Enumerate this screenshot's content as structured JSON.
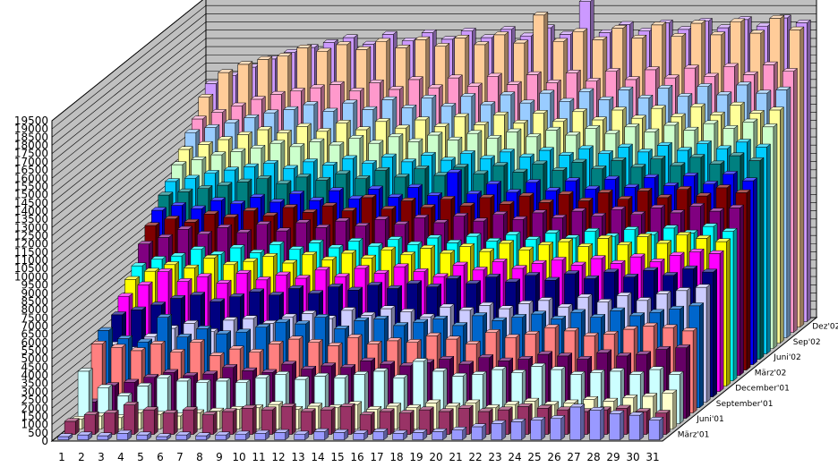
{
  "chart_data": {
    "type": "bar",
    "subtype": "3d-column",
    "title": "",
    "xlabel": "",
    "ylabel": "",
    "ylim": [
      0,
      19500
    ],
    "y_ticks": [
      "0",
      "500",
      "1000",
      "1500",
      "2000",
      "2500",
      "3000",
      "3500",
      "4000",
      "4500",
      "5000",
      "5500",
      "6000",
      "6500",
      "7000",
      "7500",
      "8000",
      "8500",
      "9000",
      "9500",
      "10000",
      "10500",
      "11000",
      "11500",
      "12000",
      "12500",
      "13000",
      "13500",
      "14000",
      "14500",
      "15000",
      "15500",
      "16000",
      "16500",
      "17000",
      "17500",
      "18000",
      "18500",
      "19000",
      "19500"
    ],
    "categories": [
      "1",
      "2",
      "3",
      "4",
      "5",
      "6",
      "7",
      "8",
      "9",
      "10",
      "11",
      "12",
      "13",
      "14",
      "15",
      "16",
      "17",
      "18",
      "19",
      "20",
      "21",
      "22",
      "23",
      "24",
      "25",
      "26",
      "27",
      "28",
      "29",
      "30",
      "31"
    ],
    "depth_labels": [
      "März'01",
      "Juni'01",
      "September'01",
      "December'01",
      "März'02",
      "Juni'02",
      "Sep'02",
      "Dez'02"
    ],
    "grid": true,
    "legend": "none",
    "series": [
      {
        "color": "#9999ff",
        "values": [
          200,
          300,
          250,
          400,
          300,
          200,
          300,
          250,
          300,
          350,
          400,
          450,
          350,
          500,
          450,
          400,
          500,
          400,
          450,
          500,
          600,
          800,
          1000,
          1100,
          1200,
          1300,
          2000,
          1800,
          1600,
          1500,
          1200
        ]
      },
      {
        "color": "#993366",
        "values": [
          800,
          1200,
          1300,
          1800,
          1500,
          1300,
          1500,
          1200,
          1400,
          1600,
          1500,
          1700,
          1400,
          1500,
          1700,
          1200,
          1400,
          1300,
          1500,
          1400,
          1600,
          1400,
          1500,
          1700,
          1600,
          1500,
          1400,
          1500,
          1600,
          1400,
          1300
        ]
      },
      {
        "color": "#ffffcc",
        "values": [
          600,
          800,
          700,
          1000,
          900,
          800,
          1000,
          1100,
          1200,
          1300,
          1500,
          1200,
          1400,
          1300,
          1500,
          1200,
          1400,
          1300,
          1600,
          1400,
          1600,
          1300,
          1500,
          1700,
          1500,
          1600,
          1800,
          1700,
          1900,
          2000,
          2200
        ]
      },
      {
        "color": "#ccffff",
        "values": [
          3200,
          2200,
          1700,
          2300,
          2800,
          2600,
          2500,
          2600,
          2500,
          2800,
          3000,
          2700,
          2900,
          2800,
          3000,
          3200,
          2800,
          3800,
          3200,
          2900,
          3000,
          3300,
          3100,
          3500,
          3300,
          3000,
          3100,
          3200,
          3000,
          3300,
          3000
        ]
      },
      {
        "color": "#660066",
        "values": [
          1000,
          2000,
          2200,
          2500,
          2800,
          2600,
          2700,
          3100,
          2900,
          2800,
          3300,
          3000,
          3200,
          3100,
          3500,
          3300,
          3200,
          3400,
          3600,
          3300,
          3700,
          3500,
          3600,
          3900,
          3800,
          3600,
          4000,
          3800,
          3900,
          4200,
          4300
        ]
      },
      {
        "color": "#ff8080",
        "values": [
          4200,
          4000,
          3800,
          4200,
          3700,
          4300,
          3500,
          3900,
          3700,
          4200,
          4500,
          4300,
          4100,
          4600,
          4200,
          4400,
          4300,
          4700,
          4500,
          4200,
          4900,
          4600,
          4800,
          5200,
          5000,
          4700,
          4800,
          5100,
          5300,
          5200,
          5000
        ]
      },
      {
        "color": "#0066cc",
        "values": [
          4700,
          4200,
          4000,
          5500,
          4300,
          4800,
          4500,
          4600,
          4900,
          5200,
          5100,
          5500,
          4800,
          5300,
          5400,
          5000,
          5200,
          5400,
          5000,
          5600,
          5300,
          5500,
          5700,
          5400,
          5800,
          5500,
          5900,
          5600,
          5800,
          6000,
          6200
        ]
      },
      {
        "color": "#ccccff",
        "values": [
          3500,
          3200,
          4000,
          4500,
          4800,
          4300,
          5000,
          5100,
          4800,
          5200,
          5400,
          5100,
          5600,
          5300,
          5700,
          5500,
          5200,
          5800,
          5600,
          5900,
          5700,
          6000,
          6200,
          5800,
          6400,
          6100,
          6500,
          6200,
          6600,
          6800,
          7000
        ]
      },
      {
        "color": "#000080",
        "values": [
          5000,
          5300,
          5600,
          6000,
          6200,
          5800,
          6100,
          6400,
          6200,
          6600,
          6300,
          6700,
          6500,
          6800,
          6600,
          6900,
          6700,
          7200,
          6900,
          7300,
          7000,
          7400,
          7100,
          7500,
          7200,
          7600,
          7300,
          7700,
          7400,
          7800,
          7600
        ]
      },
      {
        "color": "#ff00ff",
        "values": [
          5800,
          6500,
          7300,
          6700,
          7000,
          6600,
          7200,
          6800,
          7100,
          6900,
          7400,
          7000,
          7500,
          7200,
          7600,
          7300,
          7000,
          7700,
          7400,
          7900,
          7500,
          7800,
          8000,
          7700,
          8100,
          7800,
          8200,
          7900,
          8300,
          8500,
          8400
        ]
      },
      {
        "color": "#ffff00",
        "values": [
          6500,
          7000,
          7400,
          7200,
          7800,
          7400,
          7600,
          7900,
          7500,
          8000,
          7700,
          8100,
          7800,
          8300,
          8000,
          8400,
          8100,
          8500,
          8200,
          8700,
          8300,
          8600,
          8800,
          8500,
          9000,
          8600,
          9100,
          8700,
          9200,
          9000,
          8800
        ]
      },
      {
        "color": "#00ffff",
        "values": [
          7000,
          7400,
          7600,
          8000,
          7700,
          8100,
          7800,
          8300,
          8000,
          8400,
          8100,
          8500,
          8200,
          8600,
          8300,
          8700,
          8400,
          8800,
          8500,
          8900,
          8600,
          9000,
          8700,
          9100,
          8800,
          9200,
          8900,
          9300,
          9000,
          9400,
          9100
        ]
      },
      {
        "color": "#800080",
        "values": [
          8000,
          8400,
          8900,
          8600,
          9000,
          8700,
          9200,
          8800,
          9300,
          9000,
          9400,
          9100,
          9500,
          9200,
          9600,
          9300,
          9700,
          9400,
          9800,
          9500,
          9900,
          9600,
          10000,
          9700,
          10100,
          9800,
          10200,
          9900,
          10300,
          10000,
          10200
        ]
      },
      {
        "color": "#800000",
        "values": [
          8800,
          9200,
          9000,
          9500,
          9300,
          9700,
          9400,
          9900,
          9600,
          10000,
          9700,
          10500,
          9800,
          10300,
          9900,
          10400,
          10000,
          10500,
          10100,
          10600,
          10200,
          10700,
          10300,
          10800,
          10400,
          10900,
          10500,
          11000,
          10600,
          11100,
          10800
        ]
      },
      {
        "color": "#0000ff",
        "values": [
          9400,
          9700,
          9500,
          10000,
          9800,
          10200,
          9900,
          10400,
          10000,
          10600,
          10100,
          10700,
          10200,
          10800,
          10300,
          11700,
          10400,
          11000,
          10500,
          11100,
          10600,
          11200,
          10700,
          11300,
          10800,
          11400,
          10900,
          11500,
          11000,
          11600,
          11200
        ]
      },
      {
        "color": "#008080",
        "values": [
          10000,
          10200,
          10400,
          10600,
          10800,
          11000,
          10700,
          11100,
          10900,
          11300,
          11000,
          11500,
          11100,
          11600,
          11200,
          11700,
          11300,
          11800,
          11400,
          11900,
          11500,
          12000,
          11600,
          12100,
          11700,
          12200,
          11800,
          12300,
          11900,
          12400,
          12100
        ]
      },
      {
        "color": "#00ccff",
        "values": [
          10500,
          10700,
          11000,
          11200,
          11400,
          11600,
          11300,
          11700,
          11500,
          11900,
          11600,
          12000,
          11700,
          12100,
          11800,
          12200,
          11900,
          12300,
          12000,
          12400,
          12100,
          12500,
          12200,
          12600,
          12300,
          12700,
          12400,
          12800,
          12500,
          12900,
          12600
        ]
      },
      {
        "color": "#ccffcc",
        "values": [
          11200,
          11500,
          11800,
          12000,
          12200,
          12500,
          12300,
          12600,
          12400,
          12800,
          12500,
          12900,
          12600,
          13000,
          12700,
          13100,
          12800,
          13200,
          12900,
          13300,
          13000,
          13400,
          13100,
          13500,
          13200,
          13600,
          13300,
          13700,
          13400,
          13800,
          13500
        ]
      },
      {
        "color": "#ffff99",
        "values": [
          11800,
          12100,
          12400,
          12700,
          13000,
          12800,
          13200,
          12900,
          13400,
          13000,
          13500,
          13100,
          13600,
          13200,
          13800,
          13300,
          13900,
          13400,
          14000,
          13500,
          14100,
          13600,
          14200,
          13700,
          14300,
          13800,
          14400,
          13900,
          14500,
          14000,
          14200
        ]
      },
      {
        "color": "#99ccff",
        "values": [
          12500,
          12800,
          13100,
          13400,
          13700,
          13900,
          14200,
          13800,
          14300,
          13900,
          14500,
          14000,
          14600,
          14100,
          14700,
          14200,
          14800,
          14300,
          14900,
          14400,
          15000,
          14500,
          15100,
          14600,
          15200,
          14700,
          15300,
          14800,
          15400,
          14900,
          15100
        ]
      },
      {
        "color": "#ff99cc",
        "values": [
          13000,
          13400,
          13800,
          14200,
          14500,
          14700,
          14900,
          15100,
          14700,
          15200,
          14800,
          15400,
          14900,
          15500,
          15000,
          15600,
          15100,
          15700,
          15200,
          15800,
          15300,
          15900,
          15400,
          16000,
          15500,
          16100,
          15600,
          16200,
          15700,
          16300,
          15900
        ]
      },
      {
        "color": "#ffcc99",
        "values": [
          14000,
          15500,
          16000,
          16300,
          16500,
          17000,
          16800,
          17200,
          16900,
          17400,
          17000,
          17500,
          17100,
          17600,
          17200,
          17800,
          17300,
          19000,
          17400,
          18000,
          17500,
          18200,
          17600,
          18400,
          17700,
          18500,
          17800,
          18600,
          17900,
          18800,
          18100
        ]
      },
      {
        "color": "#cc99ff",
        "values": [
          14500,
          15000,
          15500,
          16000,
          16400,
          16700,
          17000,
          17300,
          16900,
          17500,
          17100,
          17600,
          17200,
          17700,
          17300,
          17800,
          17400,
          17900,
          17500,
          19500,
          17600,
          18100,
          17700,
          18200,
          17800,
          18300,
          17900,
          18400,
          18000,
          18500,
          18200
        ]
      }
    ]
  }
}
